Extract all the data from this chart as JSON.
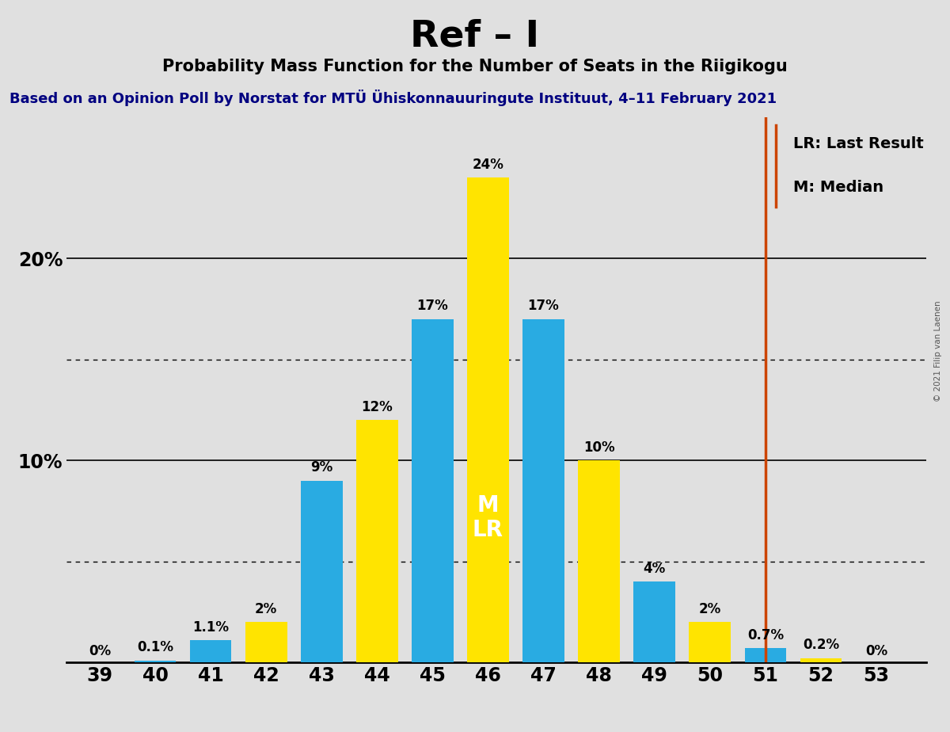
{
  "title": "Ref – I",
  "subtitle": "Probability Mass Function for the Number of Seats in the Riigikogu",
  "source_text": "Based on an Opinion Poll by Norstat for MTÜ Ühiskonnauuringute Instituut, 4–11 February 2021",
  "copyright_text": "© 2021 Filip van Laenen",
  "seats": [
    39,
    40,
    41,
    42,
    43,
    44,
    45,
    46,
    47,
    48,
    49,
    50,
    51,
    52,
    53
  ],
  "values": [
    0.0,
    0.1,
    1.1,
    2.0,
    9.0,
    12.0,
    17.0,
    24.0,
    17.0,
    10.0,
    4.0,
    2.0,
    0.7,
    0.2,
    0.0
  ],
  "bar_colors": [
    "#FFE400",
    "#29ABE2",
    "#29ABE2",
    "#FFE400",
    "#29ABE2",
    "#FFE400",
    "#29ABE2",
    "#FFE400",
    "#29ABE2",
    "#FFE400",
    "#29ABE2",
    "#FFE400",
    "#29ABE2",
    "#FFE400",
    "#FFE400"
  ],
  "bar_labels": [
    "0%",
    "0.1%",
    "1.1%",
    "2%",
    "9%",
    "12%",
    "17%",
    "24%",
    "17%",
    "10%",
    "4%",
    "2%",
    "0.7%",
    "0.2%",
    "0%"
  ],
  "zero_label_seats": [
    39,
    53
  ],
  "blue_color": "#29ABE2",
  "yellow_color": "#FFE400",
  "background_color": "#E0E0E0",
  "vline_x": 51,
  "vline_color": "#CC4400",
  "ml_label_seat": 46,
  "ml_label_text": "M\nLR",
  "legend_lr": "LR: Last Result",
  "legend_m": "M: Median",
  "ylim": [
    0,
    27
  ],
  "ytick_values": [
    10,
    20
  ],
  "ytick_labels": [
    "10%",
    "20%"
  ],
  "dotted_ylines": [
    5,
    15
  ],
  "solid_ylines": [
    10,
    20
  ],
  "bar_width": 0.75,
  "xlim_left": 38.4,
  "xlim_right": 53.9
}
